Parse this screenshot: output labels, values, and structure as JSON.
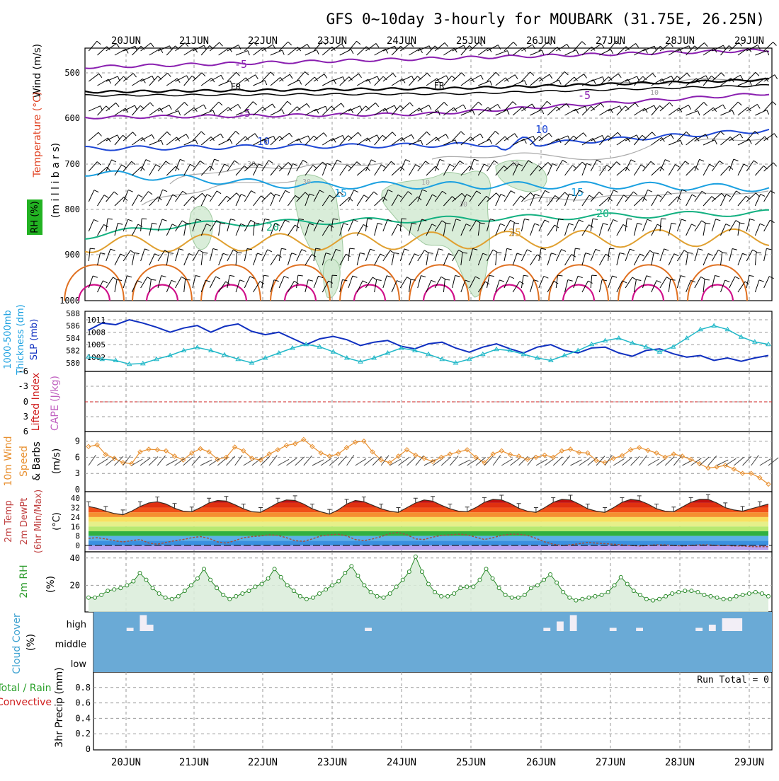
{
  "title": "GFS 0~10day 3-hourly for MOUBARK (31.75E, 26.25N)",
  "dates": [
    "20JUN",
    "21JUN",
    "22JUN",
    "23JUN",
    "24JUN",
    "25JUN",
    "26JUN",
    "27JUN",
    "28JUN",
    "29JUN"
  ],
  "colors": {
    "grid": "#9a9a9a",
    "temp_minus5": "#8a1fb0",
    "temp_fr": "#000000",
    "temp_10": "#1f48d6",
    "temp_15": "#1aa0e0",
    "temp_20": "#12b080",
    "temp_25": "#e0a030",
    "temp_30": "#e07020",
    "temp_35": "#d0108a",
    "rh_fill": "#cfe8cf",
    "slp": "#1030c0",
    "thickness": "#20b8c8",
    "lifted_zero": "#d02020",
    "wind10m": "#e89030",
    "dewpoint": "#a05040",
    "rh2m": "#2a8a2a",
    "cloud_bg": "#6aaad6",
    "cloud_bar": "#f2eef6"
  },
  "panels": {
    "profile": {
      "ylabels": [
        "Wind (m/s)",
        "Temperature (°C)",
        "(m i l l i b a r s)",
        "RH (%)"
      ],
      "pressure_ticks": [
        "500",
        "600",
        "700",
        "800",
        "900",
        "1000"
      ],
      "contour_labels": [
        {
          "text": "-5",
          "color": "temp_minus5"
        },
        {
          "text": "FR",
          "color": "temp_fr"
        },
        {
          "text": "FR",
          "color": "temp_fr"
        },
        {
          "text": "-5",
          "color": "temp_minus5"
        },
        {
          "text": "-5",
          "color": "temp_minus5"
        },
        {
          "text": "10",
          "color": "temp_10"
        },
        {
          "text": "10",
          "color": "temp_10"
        },
        {
          "text": "15",
          "color": "temp_15"
        },
        {
          "text": "15",
          "color": "temp_15"
        },
        {
          "text": "20",
          "color": "temp_20"
        },
        {
          "text": "20",
          "color": "temp_20"
        },
        {
          "text": "25",
          "color": "temp_25"
        },
        {
          "text": "10",
          "color": "grid"
        },
        {
          "text": "30",
          "color": "grid"
        },
        {
          "text": "30",
          "color": "grid"
        },
        {
          "text": "10",
          "color": "grid"
        },
        {
          "text": "30",
          "color": "grid"
        },
        {
          "text": "30",
          "color": "grid"
        },
        {
          "text": "10",
          "color": "grid"
        },
        {
          "text": "10",
          "color": "grid"
        }
      ]
    },
    "slp": {
      "ylabels": [
        "1000-500mb",
        "Thickness (dm)",
        "SLP (mb)"
      ],
      "left_ticks": [
        "588",
        "586",
        "584",
        "582",
        "580"
      ],
      "right_ticks": [
        "1011",
        "1008",
        "1005",
        "1002"
      ]
    },
    "lifted": {
      "ylabels": [
        "Lifted Index",
        "CAPE (J/kg)"
      ],
      "ticks": [
        "-6",
        "-3",
        "0",
        "3",
        "6"
      ]
    },
    "wind10m": {
      "ylabels": [
        "10m Wind",
        "Speed",
        "& Barbs",
        "(m/s)"
      ],
      "ticks": [
        "9",
        "6",
        "3",
        "0"
      ]
    },
    "temp2m": {
      "ylabels": [
        "2m Temp",
        "2m DewPt",
        "(6hr Min/Max)",
        "(°C)"
      ],
      "ticks": [
        "40",
        "32",
        "24",
        "16",
        "8",
        "0"
      ]
    },
    "rh2m": {
      "ylabels": [
        "2m RH",
        "(%)"
      ],
      "ticks": [
        "40",
        "20"
      ]
    },
    "cloud": {
      "ylabels": [
        "Cloud Cover",
        "(%)"
      ],
      "levels": [
        "high",
        "middle",
        "low"
      ]
    },
    "precip": {
      "ylabels": [
        "Total / Rain",
        "Convective",
        "3hr Precip (mm)"
      ],
      "ticks": [
        "0.8",
        "0.6",
        "0.4",
        "0.2",
        "0"
      ],
      "run_total": "Run Total = 0"
    }
  },
  "chart_data": [
    {
      "type": "line",
      "title": "1000-500mb Thickness (dm) and SLP (mb)",
      "series": [
        {
          "name": "SLP (mb)",
          "values": [
            1008.5,
            1010.2,
            1009.8,
            1011.0,
            1010.2,
            1009.2,
            1008.0,
            1009.0,
            1009.6,
            1008.0,
            1009.4,
            1010.0,
            1008.2,
            1007.4,
            1008.0,
            1006.5,
            1005.0,
            1006.4,
            1007.0,
            1006.2,
            1004.8,
            1005.6,
            1006.0,
            1004.6,
            1004.0,
            1005.2,
            1005.6,
            1004.2,
            1003.2,
            1004.4,
            1005.2,
            1004.0,
            1003.0,
            1004.4,
            1005.0,
            1003.6,
            1003.0,
            1004.2,
            1004.4,
            1003.0,
            1002.2,
            1003.6,
            1004.0,
            1002.8,
            1002.0,
            1002.4,
            1001.2,
            1001.8,
            1001.0,
            1001.8,
            1002.4
          ]
        },
        {
          "name": "Thickness (dm)",
          "values": [
            581.0,
            580.6,
            580.4,
            579.8,
            579.9,
            580.6,
            581.2,
            582.0,
            582.5,
            582.0,
            581.3,
            580.6,
            580.0,
            580.8,
            581.6,
            582.4,
            583.0,
            582.6,
            581.8,
            580.8,
            580.2,
            580.8,
            581.6,
            582.4,
            582.0,
            581.4,
            580.6,
            580.0,
            580.6,
            581.4,
            582.2,
            582.0,
            581.4,
            580.8,
            580.4,
            581.2,
            582.0,
            583.0,
            583.6,
            584.0,
            583.2,
            582.6,
            581.8,
            582.6,
            584.0,
            585.4,
            586.0,
            585.4,
            584.2,
            583.4,
            583.0
          ]
        }
      ]
    },
    {
      "type": "line",
      "title": "Lifted Index / CAPE",
      "series": [
        {
          "name": "Lifted Index",
          "values": [
            0
          ]
        }
      ],
      "ylim": [
        6,
        -6
      ]
    },
    {
      "type": "line",
      "title": "10m Wind Speed",
      "series": [
        {
          "name": "10m Wind Speed",
          "values": [
            8.0,
            8.3,
            6.5,
            5.8,
            5.0,
            4.8,
            7.0,
            7.5,
            7.4,
            7.2,
            6.2,
            5.5,
            6.8,
            7.6,
            7.0,
            5.6,
            6.0,
            7.9,
            7.2,
            5.8,
            5.5,
            6.6,
            7.4,
            8.2,
            8.5,
            9.3,
            8.0,
            6.8,
            6.2,
            6.6,
            7.8,
            8.8,
            9.0,
            7.0,
            5.5,
            5.0,
            6.2,
            7.4,
            6.4,
            5.8,
            5.2,
            6.0,
            6.6,
            7.0,
            7.4,
            6.0,
            5.0,
            6.6,
            7.2,
            6.5,
            6.2,
            5.6,
            6.0,
            6.4,
            6.0,
            7.2,
            7.5,
            6.9,
            6.8,
            5.4,
            5.0,
            5.8,
            6.3,
            7.4,
            7.8,
            7.3,
            6.8,
            6.0,
            6.6,
            6.2,
            5.6,
            4.8,
            4.0,
            4.2,
            4.5,
            3.8,
            3.0,
            3.0,
            2.2,
            1.0
          ]
        }
      ],
      "ylim": [
        0,
        10
      ]
    },
    {
      "type": "area",
      "title": "2m Temp / 2m DewPt",
      "series": [
        {
          "name": "2m Temp",
          "values": [
            33.0,
            31.5,
            29.0,
            27.0,
            26.0,
            29.0,
            33.0,
            36.0,
            37.0,
            35.0,
            31.5,
            29.0,
            28.5,
            32.0,
            36.0,
            38.0,
            37.5,
            34.5,
            31.0,
            28.5,
            28.0,
            32.0,
            36.0,
            38.5,
            38.0,
            35.0,
            31.0,
            28.5,
            26.5,
            30.0,
            35.0,
            38.0,
            37.0,
            34.0,
            31.0,
            29.0,
            28.0,
            32.0,
            36.0,
            38.5,
            37.5,
            34.0,
            31.0,
            29.0,
            28.5,
            32.0,
            36.5,
            39.0,
            38.5,
            35.5,
            31.5,
            29.0,
            28.0,
            32.0,
            36.5,
            39.0,
            38.5,
            35.0,
            31.0,
            29.0,
            28.0,
            32.0,
            36.5,
            39.0,
            38.0,
            35.0,
            31.0,
            29.0,
            28.5,
            32.5,
            36.5,
            39.0,
            39.0,
            36.0,
            32.0,
            30.0,
            29.0,
            31.0,
            33.0,
            35.0
          ]
        },
        {
          "name": "2m DewPt",
          "values": [
            6.0,
            6.5,
            5.5,
            4.0,
            3.0,
            4.0,
            5.0,
            2.0,
            1.0,
            2.5,
            4.0,
            5.0,
            6.5,
            7.5,
            6.0,
            3.0,
            2.0,
            4.0,
            6.5,
            7.5,
            8.0,
            9.0,
            8.5,
            6.5,
            4.0,
            3.5,
            5.5,
            8.0,
            9.0,
            9.5,
            8.0,
            5.0,
            4.0,
            5.5,
            7.5,
            10.0,
            11.0,
            9.0,
            5.5,
            5.0,
            7.0,
            8.5,
            9.0,
            9.5,
            9.0,
            7.0,
            5.0,
            6.5,
            8.5,
            9.5,
            9.5,
            8.5,
            6.0,
            3.0,
            1.0,
            0.0,
            0.5,
            1.5,
            2.5,
            2.0,
            1.5,
            1.0,
            0.5,
            0.0,
            -0.5,
            0.0,
            0.5,
            0.5,
            0.0,
            -0.5,
            0.0,
            0.5,
            0.5,
            0.0,
            0.0,
            -0.5,
            -0.5,
            -1.0,
            -1.0,
            -1.0
          ]
        }
      ],
      "ylim": [
        -2,
        42
      ]
    },
    {
      "type": "area",
      "title": "2m RH",
      "series": [
        {
          "name": "2m RH",
          "values": [
            11,
            11,
            13,
            16,
            17,
            18,
            20,
            23,
            29,
            24,
            18,
            14,
            11,
            10,
            12,
            16,
            20,
            25,
            32,
            24,
            18,
            13,
            10,
            12,
            14,
            16,
            19,
            21,
            25,
            32,
            26,
            20,
            16,
            12,
            10,
            11,
            14,
            17,
            20,
            23,
            29,
            34,
            27,
            20,
            15,
            12,
            11,
            14,
            19,
            24,
            30,
            41,
            30,
            21,
            15,
            12,
            12,
            14,
            18,
            19,
            19,
            24,
            32,
            25,
            18,
            13,
            11,
            11,
            13,
            18,
            20,
            24,
            28,
            22,
            15,
            11,
            9,
            10,
            11,
            12,
            13,
            15,
            20,
            26,
            21,
            16,
            13,
            10,
            9,
            10,
            12,
            14,
            15,
            16,
            16,
            15,
            13,
            12,
            11,
            10,
            10,
            12,
            13,
            14,
            15,
            14,
            12
          ]
        }
      ],
      "ylim": [
        0,
        45
      ]
    },
    {
      "type": "bar",
      "title": "Cloud Cover (%) high",
      "series": [
        {
          "name": "high",
          "values": [
            0,
            0,
            0,
            0,
            0,
            5,
            0,
            25,
            10,
            0,
            0,
            0,
            0,
            0,
            0,
            0,
            0,
            0,
            0,
            0,
            0,
            0,
            0,
            0,
            0,
            0,
            0,
            0,
            0,
            0,
            0,
            0,
            0,
            0,
            0,
            0,
            0,
            0,
            0,
            0,
            0,
            5,
            0,
            0,
            0,
            0,
            0,
            0,
            0,
            0,
            0,
            0,
            0,
            0,
            0,
            0,
            0,
            0,
            0,
            0,
            0,
            0,
            0,
            0,
            0,
            0,
            0,
            0,
            5,
            0,
            15,
            0,
            25,
            0,
            0,
            0,
            0,
            0,
            5,
            0,
            0,
            0,
            5,
            0,
            0,
            0,
            0,
            0,
            0,
            0,
            0,
            5,
            0,
            10,
            0,
            20,
            20,
            20,
            0,
            0,
            0,
            0
          ]
        }
      ]
    },
    {
      "type": "bar",
      "title": "3hr Precip (mm)",
      "series": [
        {
          "name": "Total / Rain",
          "values": [
            0
          ]
        }
      ],
      "ylim": [
        0,
        1
      ]
    }
  ]
}
